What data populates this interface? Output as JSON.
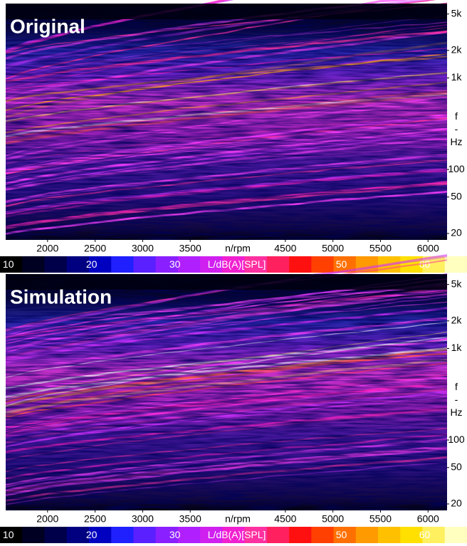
{
  "chart_data": [
    {
      "type": "spectrogram",
      "title": "Original",
      "xlim": [
        1560,
        6200
      ],
      "xticks": [
        2000,
        2500,
        3000,
        3500,
        4500,
        5000,
        5500,
        6000
      ],
      "xlabel": "n/rpm",
      "ylog": true,
      "ylim": [
        17,
        6500
      ],
      "yticks": [
        {
          "value": 5000,
          "label": "5k"
        },
        {
          "value": 2000,
          "label": "2k"
        },
        {
          "value": 1000,
          "label": "1k"
        },
        100,
        50,
        20
      ],
      "ylabel": [
        "f",
        "-",
        "Hz"
      ],
      "colorbar": {
        "lim": [
          9,
          65
        ],
        "ticks": [
          10,
          20,
          30,
          50,
          60
        ],
        "label": "L/dB(A)[SPL]",
        "colors": [
          "#000000",
          "#000022",
          "#00004a",
          "#000080",
          "#0000c0",
          "#2020ff",
          "#5a20ff",
          "#8a20ff",
          "#b020ff",
          "#d020f0",
          "#f020d0",
          "#ff30a0",
          "#ff2060",
          "#ff1010",
          "#ff4000",
          "#ff7000",
          "#ff9a00",
          "#ffc000",
          "#ffe000",
          "#fff060",
          "#ffffc0"
        ]
      }
    },
    {
      "type": "spectrogram",
      "title": "Simulation",
      "xlim": [
        1560,
        6200
      ],
      "xticks": [
        2000,
        2500,
        3000,
        3500,
        4500,
        5000,
        5500,
        6000
      ],
      "xlabel": "n/rpm",
      "ylog": true,
      "ylim": [
        17,
        6500
      ],
      "yticks": [
        {
          "value": 5000,
          "label": "5k"
        },
        {
          "value": 2000,
          "label": "2k"
        },
        {
          "value": 1000,
          "label": "1k"
        },
        100,
        50,
        20
      ],
      "ylabel": [
        "f",
        "-",
        "Hz"
      ],
      "colorbar": {
        "lim": [
          9,
          65
        ],
        "ticks": [
          10,
          20,
          30,
          50,
          60
        ],
        "label": "L/dB(A)[SPL]",
        "colors": [
          "#000000",
          "#000022",
          "#00004a",
          "#000080",
          "#0000c0",
          "#2020ff",
          "#5a20ff",
          "#8a20ff",
          "#b020ff",
          "#d020f0",
          "#f020d0",
          "#ff30a0",
          "#ff2060",
          "#ff1010",
          "#ff4000",
          "#ff7000",
          "#ff9a00",
          "#ffc000",
          "#ffe000",
          "#fff060",
          "#ffffc0"
        ]
      }
    }
  ]
}
